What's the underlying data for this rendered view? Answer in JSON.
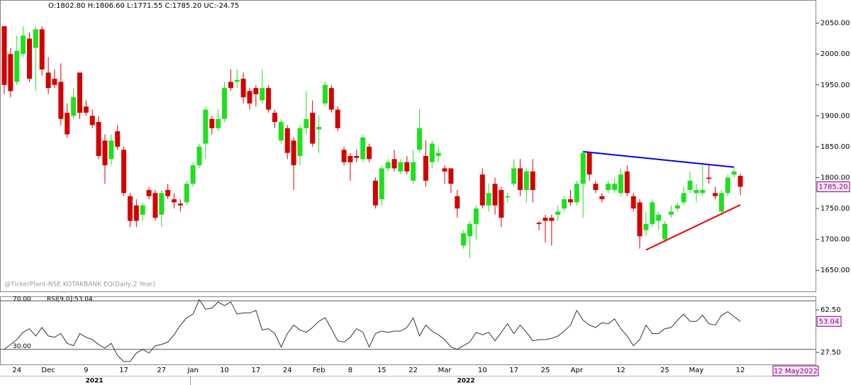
{
  "header": "O:1802.80  H:1806.60  L:1771.55  C:1785.20  UC:-24.75",
  "watermark": "@TickerPlant-NSE KOTAKBANK EQ(Daily,2 Year)",
  "date_box": "12 May2022",
  "year_labels": [
    "2021",
    "2022"
  ],
  "chart_data": [
    {
      "type": "candlestick",
      "categories": [
        null,
        null,
        "24",
        null,
        null,
        null,
        null,
        "Dec",
        null,
        null,
        null,
        null,
        null,
        "9",
        null,
        null,
        null,
        null,
        null,
        "17",
        null,
        null,
        null,
        null,
        null,
        "27",
        null,
        null,
        null,
        null,
        "Jan",
        null,
        null,
        null,
        null,
        "10",
        null,
        null,
        null,
        null,
        "17",
        null,
        null,
        null,
        null,
        "24",
        null,
        null,
        null,
        null,
        "Feb",
        null,
        null,
        null,
        null,
        "8",
        null,
        null,
        null,
        null,
        "15",
        null,
        null,
        null,
        null,
        "22",
        null,
        null,
        null,
        null,
        "Mar",
        null,
        null,
        null,
        null,
        null,
        "10",
        null,
        null,
        null,
        null,
        "17",
        null,
        null,
        null,
        null,
        "25",
        null,
        null,
        null,
        null,
        "Apr",
        null,
        null,
        null,
        null,
        null,
        null,
        "12",
        null,
        null,
        null,
        null,
        null,
        null,
        "25",
        null,
        null,
        null,
        null,
        "May",
        null,
        null,
        null,
        null,
        null,
        null,
        "12"
      ],
      "open": [
        2045,
        2000,
        1955,
        2000,
        2025,
        2010,
        2040,
        1970,
        1960,
        1955,
        1905,
        1900,
        1970,
        1915,
        1900,
        1890,
        1860,
        1830,
        1875,
        1845,
        1770,
        1755,
        1740,
        1780,
        1775,
        1740,
        1780,
        1765,
        1758,
        1760,
        1790,
        1820,
        1855,
        1895,
        1880,
        1895,
        1955,
        1955,
        1960,
        1940,
        1945,
        1925,
        1945,
        1905,
        1860,
        1880,
        1860,
        1835,
        1880,
        1905,
        1878,
        1920,
        1945,
        1910,
        1845,
        1835,
        1835,
        1830,
        1850,
        1795,
        1765,
        1815,
        1830,
        1810,
        1825,
        1795,
        1845,
        1835,
        1825,
        1835,
        1815,
        1815,
        1770,
        1690,
        1705,
        1725,
        1805,
        1755,
        1790,
        1780,
        1768,
        1790,
        1815,
        1780,
        1810,
        1727,
        1735,
        1735,
        1740,
        1750,
        1765,
        1760,
        1790,
        1840,
        1790,
        1770,
        1780,
        1780,
        1775,
        1810,
        1770,
        1760,
        1715,
        1725,
        1730,
        1700,
        1740,
        1750,
        1760,
        1780,
        1775,
        1775,
        1800,
        1775,
        1745,
        1775,
        1805,
        1802.8
      ],
      "high": [
        2045,
        2010,
        2030,
        2045,
        2035,
        2045,
        2045,
        1995,
        1975,
        1985,
        1920,
        1945,
        1970,
        1925,
        1910,
        1900,
        1870,
        1870,
        1885,
        1850,
        1775,
        1765,
        1760,
        1785,
        1780,
        1780,
        1790,
        1775,
        1765,
        1795,
        1825,
        1855,
        1915,
        1900,
        1910,
        1955,
        1975,
        1975,
        1970,
        1945,
        1950,
        1975,
        1950,
        1910,
        1895,
        1885,
        1865,
        1885,
        1940,
        1925,
        1900,
        1955,
        1950,
        1915,
        1850,
        1840,
        1845,
        1870,
        1855,
        1800,
        1820,
        1830,
        1845,
        1830,
        1835,
        1845,
        1910,
        1860,
        1860,
        1850,
        1820,
        1815,
        1780,
        1715,
        1730,
        1755,
        1815,
        1790,
        1800,
        1785,
        1775,
        1830,
        1830,
        1815,
        1830,
        1730,
        1740,
        1740,
        1755,
        1770,
        1780,
        1795,
        1842,
        1842,
        1795,
        1775,
        1795,
        1800,
        1815,
        1820,
        1775,
        1765,
        1745,
        1765,
        1745,
        1730,
        1755,
        1760,
        1785,
        1810,
        1790,
        1820,
        1820,
        1785,
        1780,
        1805,
        1815,
        1806.6
      ],
      "low": [
        1935,
        1930,
        1950,
        1995,
        1955,
        1940,
        1965,
        1935,
        1945,
        1885,
        1865,
        1895,
        1895,
        1900,
        1880,
        1830,
        1790,
        1820,
        1845,
        1770,
        1720,
        1720,
        1730,
        1765,
        1730,
        1720,
        1765,
        1750,
        1745,
        1755,
        1785,
        1815,
        1830,
        1870,
        1875,
        1890,
        1940,
        1945,
        1920,
        1910,
        1915,
        1920,
        1905,
        1880,
        1855,
        1830,
        1780,
        1820,
        1870,
        1850,
        1840,
        1915,
        1905,
        1875,
        1820,
        1795,
        1825,
        1825,
        1825,
        1750,
        1755,
        1810,
        1810,
        1805,
        1805,
        1790,
        1840,
        1785,
        1815,
        1825,
        1790,
        1775,
        1735,
        1685,
        1670,
        1700,
        1750,
        1745,
        1740,
        1720,
        1760,
        1785,
        1770,
        1760,
        1760,
        1715,
        1695,
        1690,
        1730,
        1745,
        1755,
        1755,
        1735,
        1795,
        1775,
        1760,
        1775,
        1775,
        1770,
        1770,
        1745,
        1685,
        1705,
        1720,
        1715,
        1695,
        1735,
        1745,
        1755,
        1775,
        1760,
        1770,
        1790,
        1765,
        1740,
        1770,
        1800,
        1771.55
      ],
      "close": [
        1950,
        1940,
        2005,
        2030,
        1960,
        2040,
        1975,
        1945,
        1950,
        1895,
        1870,
        1930,
        1905,
        1905,
        1885,
        1835,
        1820,
        1860,
        1850,
        1775,
        1730,
        1730,
        1755,
        1770,
        1735,
        1775,
        1770,
        1760,
        1755,
        1790,
        1820,
        1850,
        1910,
        1880,
        1895,
        1945,
        1945,
        1958,
        1930,
        1920,
        1935,
        1945,
        1910,
        1890,
        1890,
        1840,
        1820,
        1880,
        1895,
        1855,
        1882,
        1950,
        1910,
        1880,
        1825,
        1825,
        1832,
        1865,
        1830,
        1755,
        1815,
        1825,
        1815,
        1825,
        1810,
        1825,
        1880,
        1795,
        1855,
        1840,
        1810,
        1790,
        1750,
        1710,
        1725,
        1750,
        1755,
        1775,
        1755,
        1735,
        1770,
        1815,
        1780,
        1810,
        1780,
        1725,
        1730,
        1730,
        1745,
        1765,
        1760,
        1790,
        1840,
        1805,
        1780,
        1765,
        1790,
        1790,
        1805,
        1775,
        1750,
        1705,
        1725,
        1760,
        1740,
        1725,
        1745,
        1755,
        1775,
        1795,
        1780,
        1780,
        1798,
        1770,
        1775,
        1800,
        1810,
        1785.2
      ],
      "last_price_label": "1785.20",
      "up_color": "#1fe01f",
      "down_color": "#d40000",
      "ylim": [
        1617,
        2084
      ],
      "yticks": [
        {
          "value": 1650,
          "label": "1650.00"
        },
        {
          "value": 1700,
          "label": "1700.00"
        },
        {
          "value": 1750,
          "label": "1750.00"
        },
        {
          "value": 1800,
          "label": "1800.00"
        },
        {
          "value": 1850,
          "label": "1850.00"
        },
        {
          "value": 1900,
          "label": "1900.00"
        },
        {
          "value": 1950,
          "label": "1950.00"
        },
        {
          "value": 2000,
          "label": "2000.00"
        },
        {
          "value": 2050,
          "label": "2050.00"
        }
      ],
      "trendlines": [
        {
          "color": "#0000ee",
          "x": [
            92,
            116
          ],
          "y": [
            1842,
            1817
          ]
        },
        {
          "color": "#ee0000",
          "x": [
            102,
            117
          ],
          "y": [
            1683,
            1756
          ]
        }
      ]
    },
    {
      "type": "line",
      "label": "RSI[9,0]:53.04",
      "color": "#333333",
      "values": [
        30,
        34,
        38,
        44,
        47,
        41,
        48,
        41,
        40,
        43,
        35,
        33,
        43,
        40,
        38,
        34,
        31,
        35,
        25,
        20,
        20,
        27,
        30,
        27,
        33,
        34,
        36,
        42,
        50,
        56,
        59,
        71,
        63,
        64,
        69,
        66,
        69,
        59,
        60,
        60,
        62,
        46,
        47,
        43,
        32,
        43,
        50,
        46,
        44,
        48,
        53,
        56,
        47,
        37,
        36,
        40,
        47,
        44,
        32,
        43,
        45,
        44,
        45,
        45,
        48,
        56,
        41,
        50,
        45,
        42,
        38,
        32,
        30,
        33,
        36,
        44,
        42,
        44,
        37,
        44,
        51,
        43,
        50,
        44,
        37,
        38,
        38,
        39,
        41,
        45,
        50,
        62,
        54,
        50,
        48,
        52,
        51,
        55,
        47,
        41,
        33,
        38,
        50,
        43,
        43,
        47,
        48,
        54,
        59,
        53,
        53,
        58,
        51,
        50,
        58,
        61,
        57,
        53.04
      ],
      "ylim": [
        18.75,
        70.7
      ],
      "yticks": [
        {
          "value": 27.5,
          "label": "27.50"
        },
        {
          "value": 62.5,
          "label": "62.50"
        }
      ],
      "hlines": [
        {
          "value": 70,
          "label": "70.00"
        },
        {
          "value": 30,
          "label": "30.00"
        }
      ]
    }
  ]
}
